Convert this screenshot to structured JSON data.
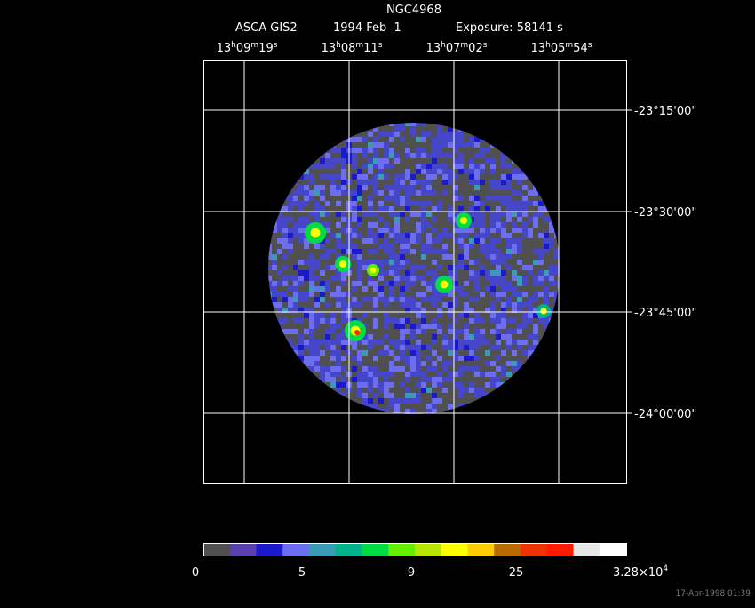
{
  "header": {
    "object": "NGC4968",
    "instrument": "ASCA GIS2",
    "date": "1994 Feb  1",
    "exposure": "Exposure: 58141 s"
  },
  "ra_labels": [
    [
      "13",
      "h",
      "09",
      "m",
      "19",
      "s"
    ],
    [
      "13",
      "h",
      "08",
      "m",
      "11",
      "s"
    ],
    [
      "13",
      "h",
      "07",
      "m",
      "02",
      "s"
    ],
    [
      "13",
      "h",
      "05",
      "m",
      "54",
      "s"
    ]
  ],
  "dec_labels": [
    "-23°15'00\"",
    "-23°30'00\"",
    "-23°45'00\"",
    "-24°00'00\""
  ],
  "colorbar": {
    "labels": [
      "0",
      "5",
      "9",
      "25"
    ],
    "max_label": {
      "mantissa": "3.28×10",
      "exponent": "4"
    },
    "colors": [
      "#505050",
      "#5a3fb0",
      "#1a1acc",
      "#6d6df0",
      "#3a9ab8",
      "#00b38a",
      "#00dd44",
      "#66ee00",
      "#b8e600",
      "#ffff00",
      "#ffcc00",
      "#b86b00",
      "#ee3300",
      "#ff1a00",
      "#e6e6e6",
      "#ffffff"
    ]
  },
  "footer": "17-Apr-1998 01:39"
}
